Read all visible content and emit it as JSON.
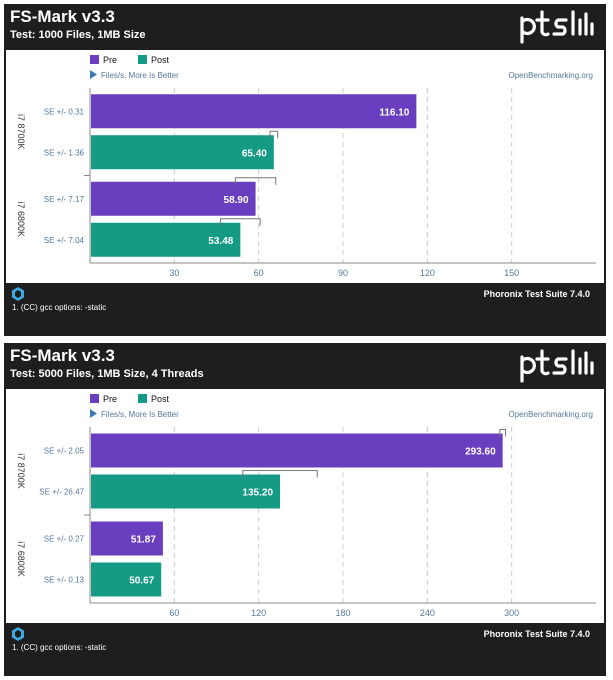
{
  "legend": {
    "pre": "Pre",
    "post": "Post"
  },
  "colors": {
    "pre": "#6a3fbf",
    "post": "#159a86",
    "grid": "#cccccc",
    "axis": "#557799"
  },
  "charts": [
    {
      "title": "FS-Mark v3.3",
      "subtitle": "Test: 1000 Files, 1MB Size",
      "metric": "Files/s, More Is Better",
      "site": "OpenBenchmarking.org",
      "footer": "Phoronix Test Suite 7.4.0",
      "footnote": "1. (CC) gcc options: -static"
    },
    {
      "title": "FS-Mark v3.3",
      "subtitle": "Test: 5000 Files, 1MB Size, 4 Threads",
      "metric": "Files/s, More Is Better",
      "site": "OpenBenchmarking.org",
      "footer": "Phoronix Test Suite 7.4.0",
      "footnote": "1. (CC) gcc options: -static"
    }
  ],
  "chart_data": [
    {
      "type": "bar",
      "orientation": "horizontal",
      "title": "FS-Mark v3.3",
      "subtitle": "Test: 1000 Files, 1MB Size",
      "xlabel": "Files/s, More Is Better",
      "xlim": [
        0,
        180
      ],
      "xticks": [
        30,
        60,
        90,
        120,
        150
      ],
      "groups": [
        {
          "label": "i7 8700K",
          "bars": [
            {
              "series": "Pre",
              "value": 116.1,
              "label": "116.10",
              "se": "SE +/- 0.31",
              "err": 0.31
            },
            {
              "series": "Post",
              "value": 65.4,
              "label": "65.40",
              "se": "SE +/- 1.36",
              "err": 1.36
            }
          ]
        },
        {
          "label": "i7 6800K",
          "bars": [
            {
              "series": "Pre",
              "value": 58.9,
              "label": "58.90",
              "se": "SE +/- 7.17",
              "err": 7.17
            },
            {
              "series": "Post",
              "value": 53.48,
              "label": "53.48",
              "se": "SE +/- 7.04",
              "err": 7.04
            }
          ]
        }
      ]
    },
    {
      "type": "bar",
      "orientation": "horizontal",
      "title": "FS-Mark v3.3",
      "subtitle": "Test: 5000 Files, 1MB Size, 4 Threads",
      "xlabel": "Files/s, More Is Better",
      "xlim": [
        0,
        360
      ],
      "xticks": [
        60,
        120,
        180,
        240,
        300
      ],
      "groups": [
        {
          "label": "i7 8700K",
          "bars": [
            {
              "series": "Pre",
              "value": 293.6,
              "label": "293.60",
              "se": "SE +/- 2.05",
              "err": 2.05
            },
            {
              "series": "Post",
              "value": 135.2,
              "label": "135.20",
              "se": "SE +/- 26.47",
              "err": 26.47
            }
          ]
        },
        {
          "label": "i7 6800K",
          "bars": [
            {
              "series": "Pre",
              "value": 51.87,
              "label": "51.87",
              "se": "SE +/- 0.27",
              "err": 0.27
            },
            {
              "series": "Post",
              "value": 50.67,
              "label": "50.67",
              "se": "SE +/- 0.13",
              "err": 0.13
            }
          ]
        }
      ]
    }
  ]
}
